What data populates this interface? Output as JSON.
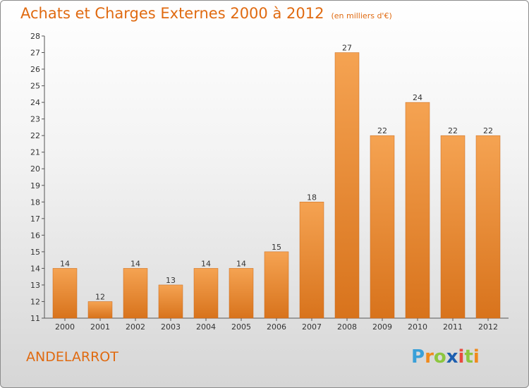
{
  "header": {
    "title": "Achats et Charges Externes 2000 à 2012",
    "subtitle": "(en milliers d'€)"
  },
  "footer": {
    "commune": "ANDELARROT",
    "logo_letters": [
      "P",
      "r",
      "o",
      "x",
      "i",
      "t",
      "i"
    ],
    "logo_colors": [
      "#3aa0d8",
      "#f08a1c",
      "#8dc63f",
      "#1d5fb0",
      "#e94a3f",
      "#8dc63f",
      "#f08a1c"
    ]
  },
  "chart_data": {
    "type": "bar",
    "categories": [
      "2000",
      "2001",
      "2002",
      "2003",
      "2004",
      "2005",
      "2006",
      "2007",
      "2008",
      "2009",
      "2010",
      "2011",
      "2012"
    ],
    "values": [
      14,
      12,
      14,
      13,
      14,
      14,
      15,
      18,
      27,
      22,
      24,
      22,
      22
    ],
    "data_labels": [
      "14",
      "12",
      "14",
      "13",
      "14",
      "14",
      "15",
      "18",
      "27",
      "22",
      "24",
      "22",
      "22"
    ],
    "yticks": [
      "11",
      "12",
      "13",
      "14",
      "15",
      "16",
      "17",
      "18",
      "19",
      "20",
      "21",
      "22",
      "23",
      "24",
      "25",
      "26",
      "27",
      "28"
    ],
    "ylim": [
      11,
      28
    ],
    "grid": false,
    "bar_color_top": "#f5a352",
    "bar_color_bottom": "#d8731c",
    "title": "Achats et Charges Externes 2000 à 2012",
    "xlabel": "",
    "ylabel": ""
  }
}
